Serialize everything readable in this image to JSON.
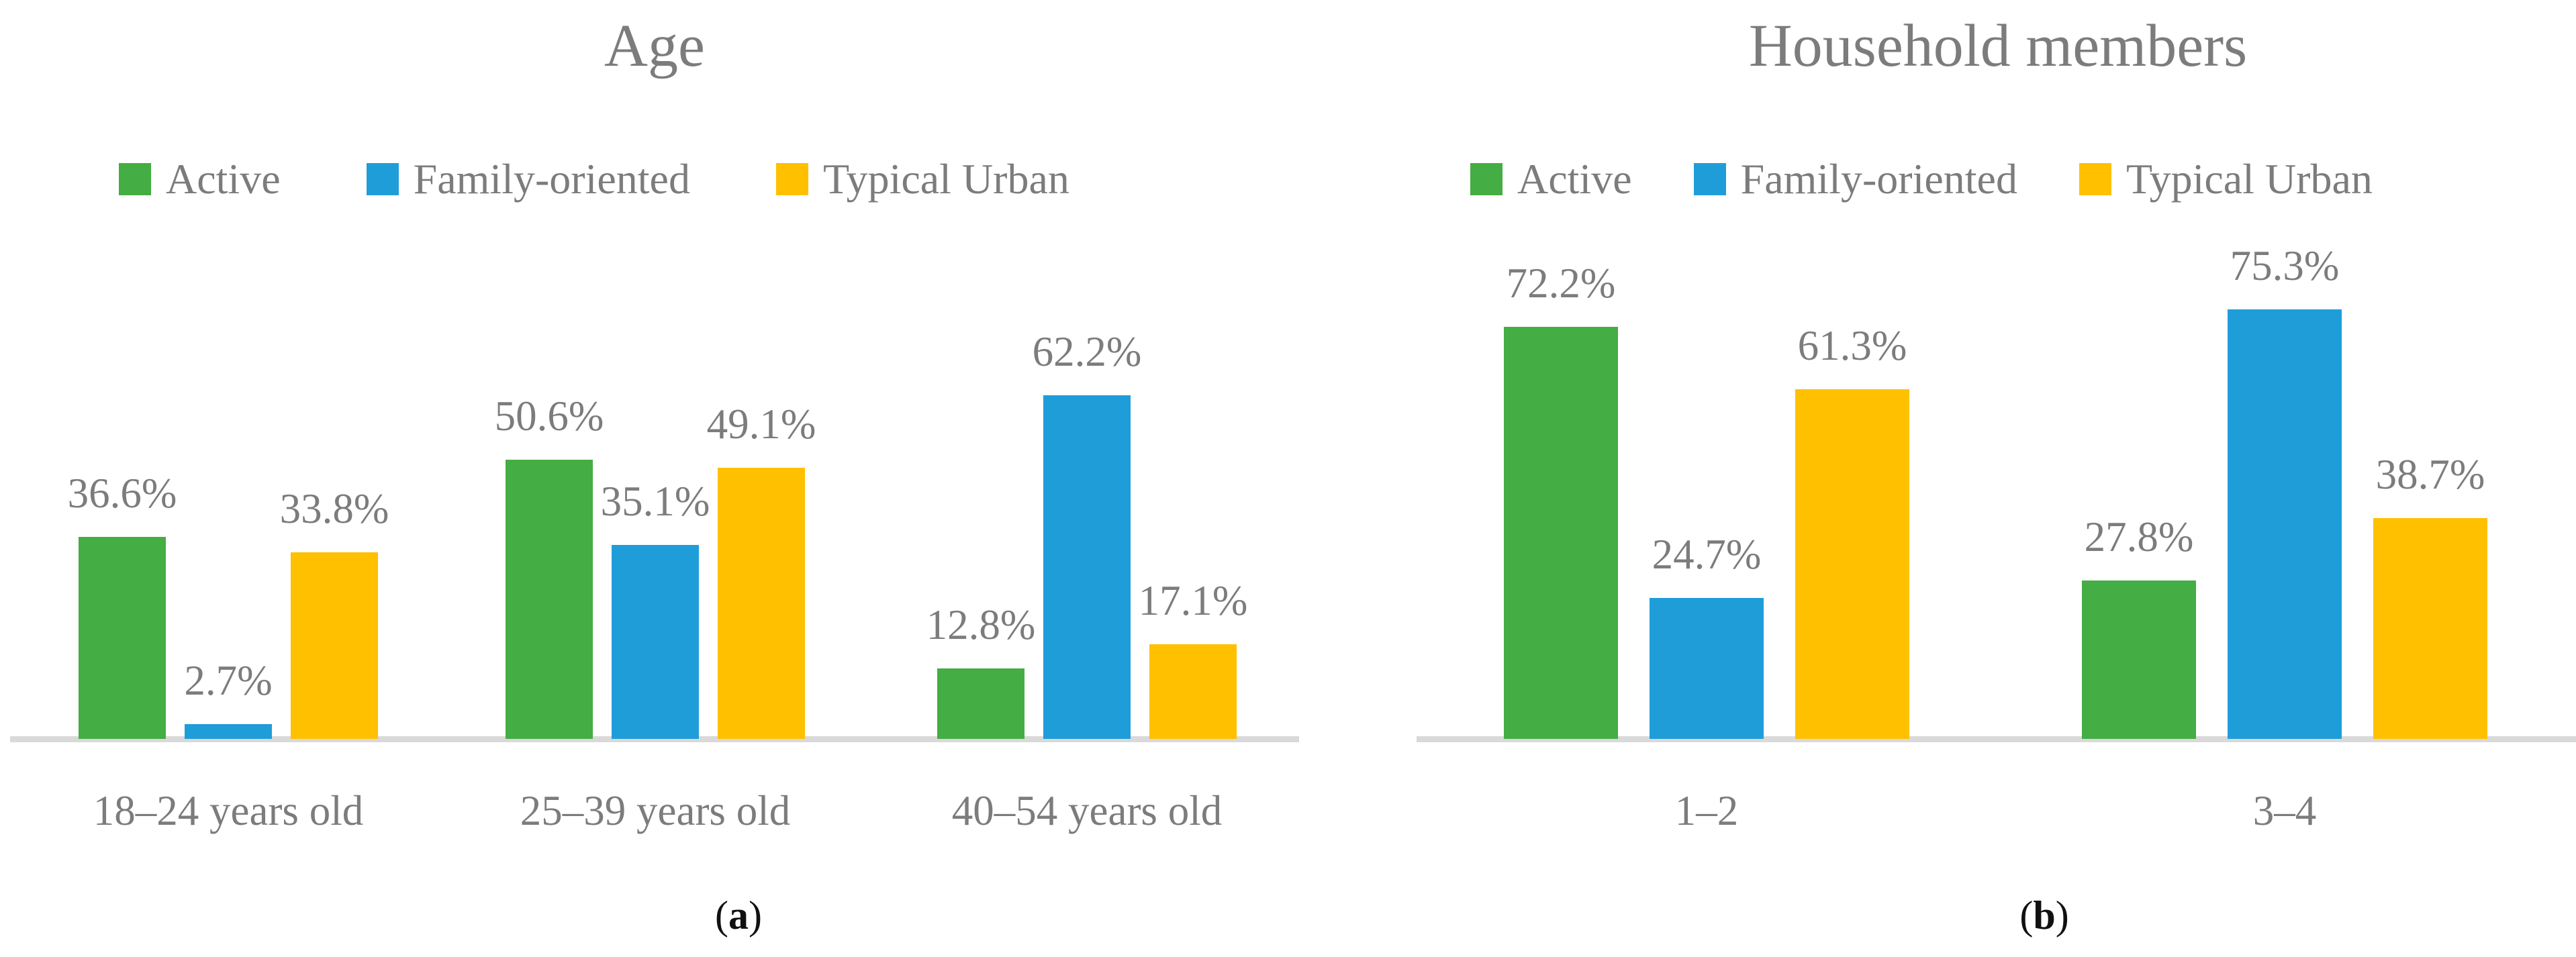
{
  "figure": {
    "panel_captions": [
      "(a)",
      "(b)"
    ]
  },
  "style": {
    "text_color": "#7C7C7C",
    "axis_color": "#D9D9D9",
    "caption_color": "#111111",
    "background": "#FFFFFF",
    "series_colors": {
      "Active": "#44AD43",
      "Family-oriented": "#1F9DD9",
      "Typical Urban": "#FFC000"
    }
  },
  "chart_data": [
    {
      "type": "bar",
      "title": "Age",
      "caption": "(a)",
      "categories": [
        "18–24 years old",
        "25–39 years old",
        "40–54 years old"
      ],
      "series": [
        {
          "name": "Active",
          "color": "#44AD43",
          "values": [
            36.6,
            50.6,
            12.8
          ]
        },
        {
          "name": "Family-oriented",
          "color": "#1F9DD9",
          "values": [
            2.7,
            35.1,
            62.2
          ]
        },
        {
          "name": "Typical Urban",
          "color": "#FFC000",
          "values": [
            33.8,
            49.1,
            17.1
          ]
        }
      ],
      "value_suffix": "%",
      "data_labels": true,
      "ylim": [
        0,
        100
      ],
      "y_axis_visible": false,
      "gridlines": false,
      "legend_position": "top"
    },
    {
      "type": "bar",
      "title": "Household members",
      "caption": "(b)",
      "categories": [
        "1–2",
        "3–4"
      ],
      "series": [
        {
          "name": "Active",
          "color": "#44AD43",
          "values": [
            72.2,
            27.8
          ]
        },
        {
          "name": "Family-oriented",
          "color": "#1F9DD9",
          "values": [
            24.7,
            75.3
          ]
        },
        {
          "name": "Typical Urban",
          "color": "#FFC000",
          "values": [
            61.3,
            38.7
          ]
        }
      ],
      "value_suffix": "%",
      "data_labels": true,
      "ylim": [
        0,
        100
      ],
      "y_axis_visible": false,
      "gridlines": false,
      "legend_position": "top"
    }
  ]
}
